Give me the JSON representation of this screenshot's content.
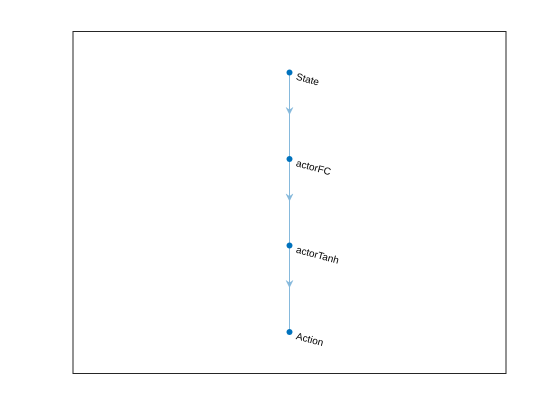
{
  "colors": {
    "background": "#ffffff",
    "axes_border": "#262626",
    "node": "#0072bd",
    "edge": "#86b9dc",
    "label": "#000000"
  },
  "graph": {
    "nodes": [
      {
        "id": "State",
        "label": "State"
      },
      {
        "id": "actorFC",
        "label": "actorFC"
      },
      {
        "id": "actorTanh",
        "label": "actorTanh"
      },
      {
        "id": "Action",
        "label": "Action"
      }
    ],
    "edges": [
      {
        "from": "State",
        "to": "actorFC"
      },
      {
        "from": "actorFC",
        "to": "actorTanh"
      },
      {
        "from": "actorTanh",
        "to": "Action"
      }
    ],
    "layout_direction": "top-to-bottom",
    "edges_directed": true
  }
}
